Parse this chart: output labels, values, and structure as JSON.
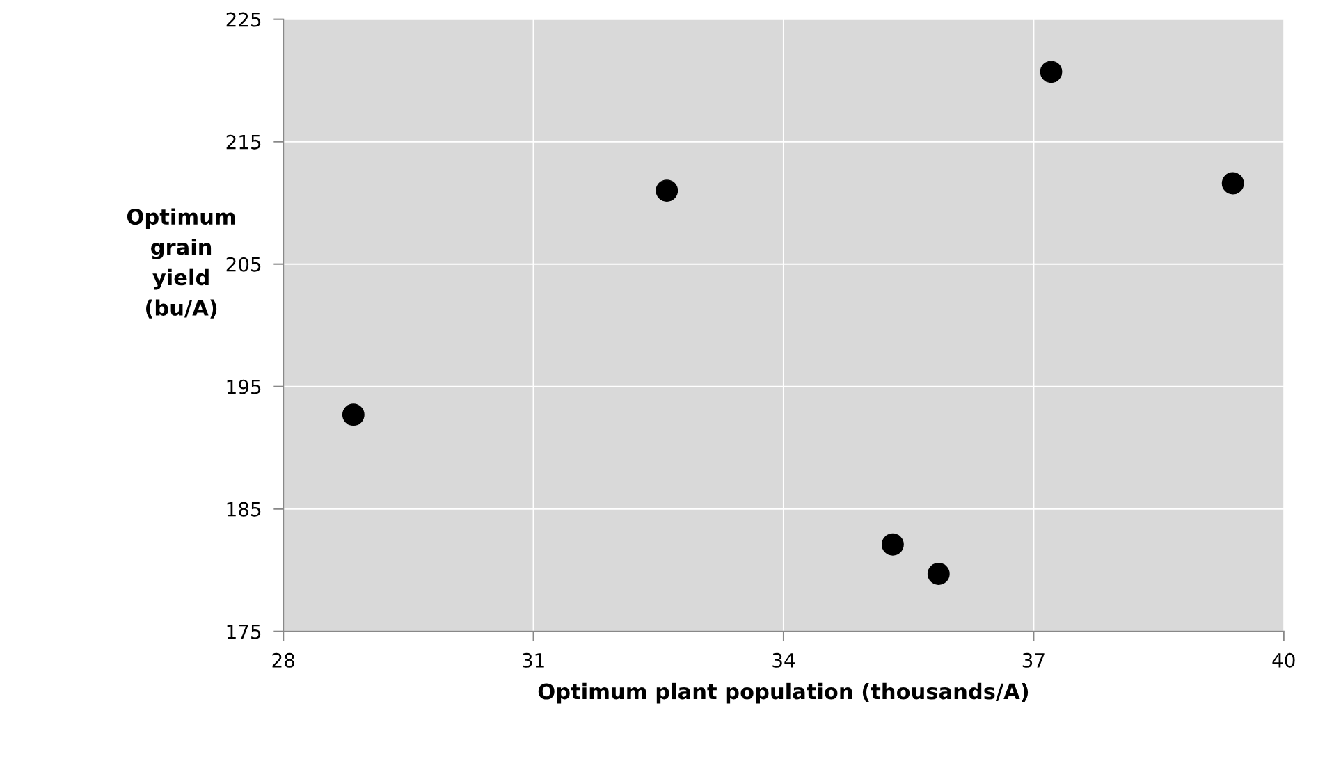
{
  "chart_data": {
    "type": "scatter",
    "xlabel": "Optimum plant population (thousands/A)",
    "ylabel": "Optimum grain yield (bu/A)",
    "x": [
      28.84,
      32.6,
      37.21,
      39.39,
      35.31,
      35.86
    ],
    "values": [
      192.7,
      211.0,
      220.7,
      211.6,
      182.1,
      179.7
    ],
    "color": "#000000",
    "marker": "circle",
    "xlim": [
      28,
      40
    ],
    "xticks": [
      28,
      31,
      34,
      37,
      40
    ],
    "ylim": [
      175,
      225
    ],
    "yticks": [
      175,
      185,
      195,
      205,
      215,
      225
    ],
    "grid": true,
    "legend": false
  }
}
